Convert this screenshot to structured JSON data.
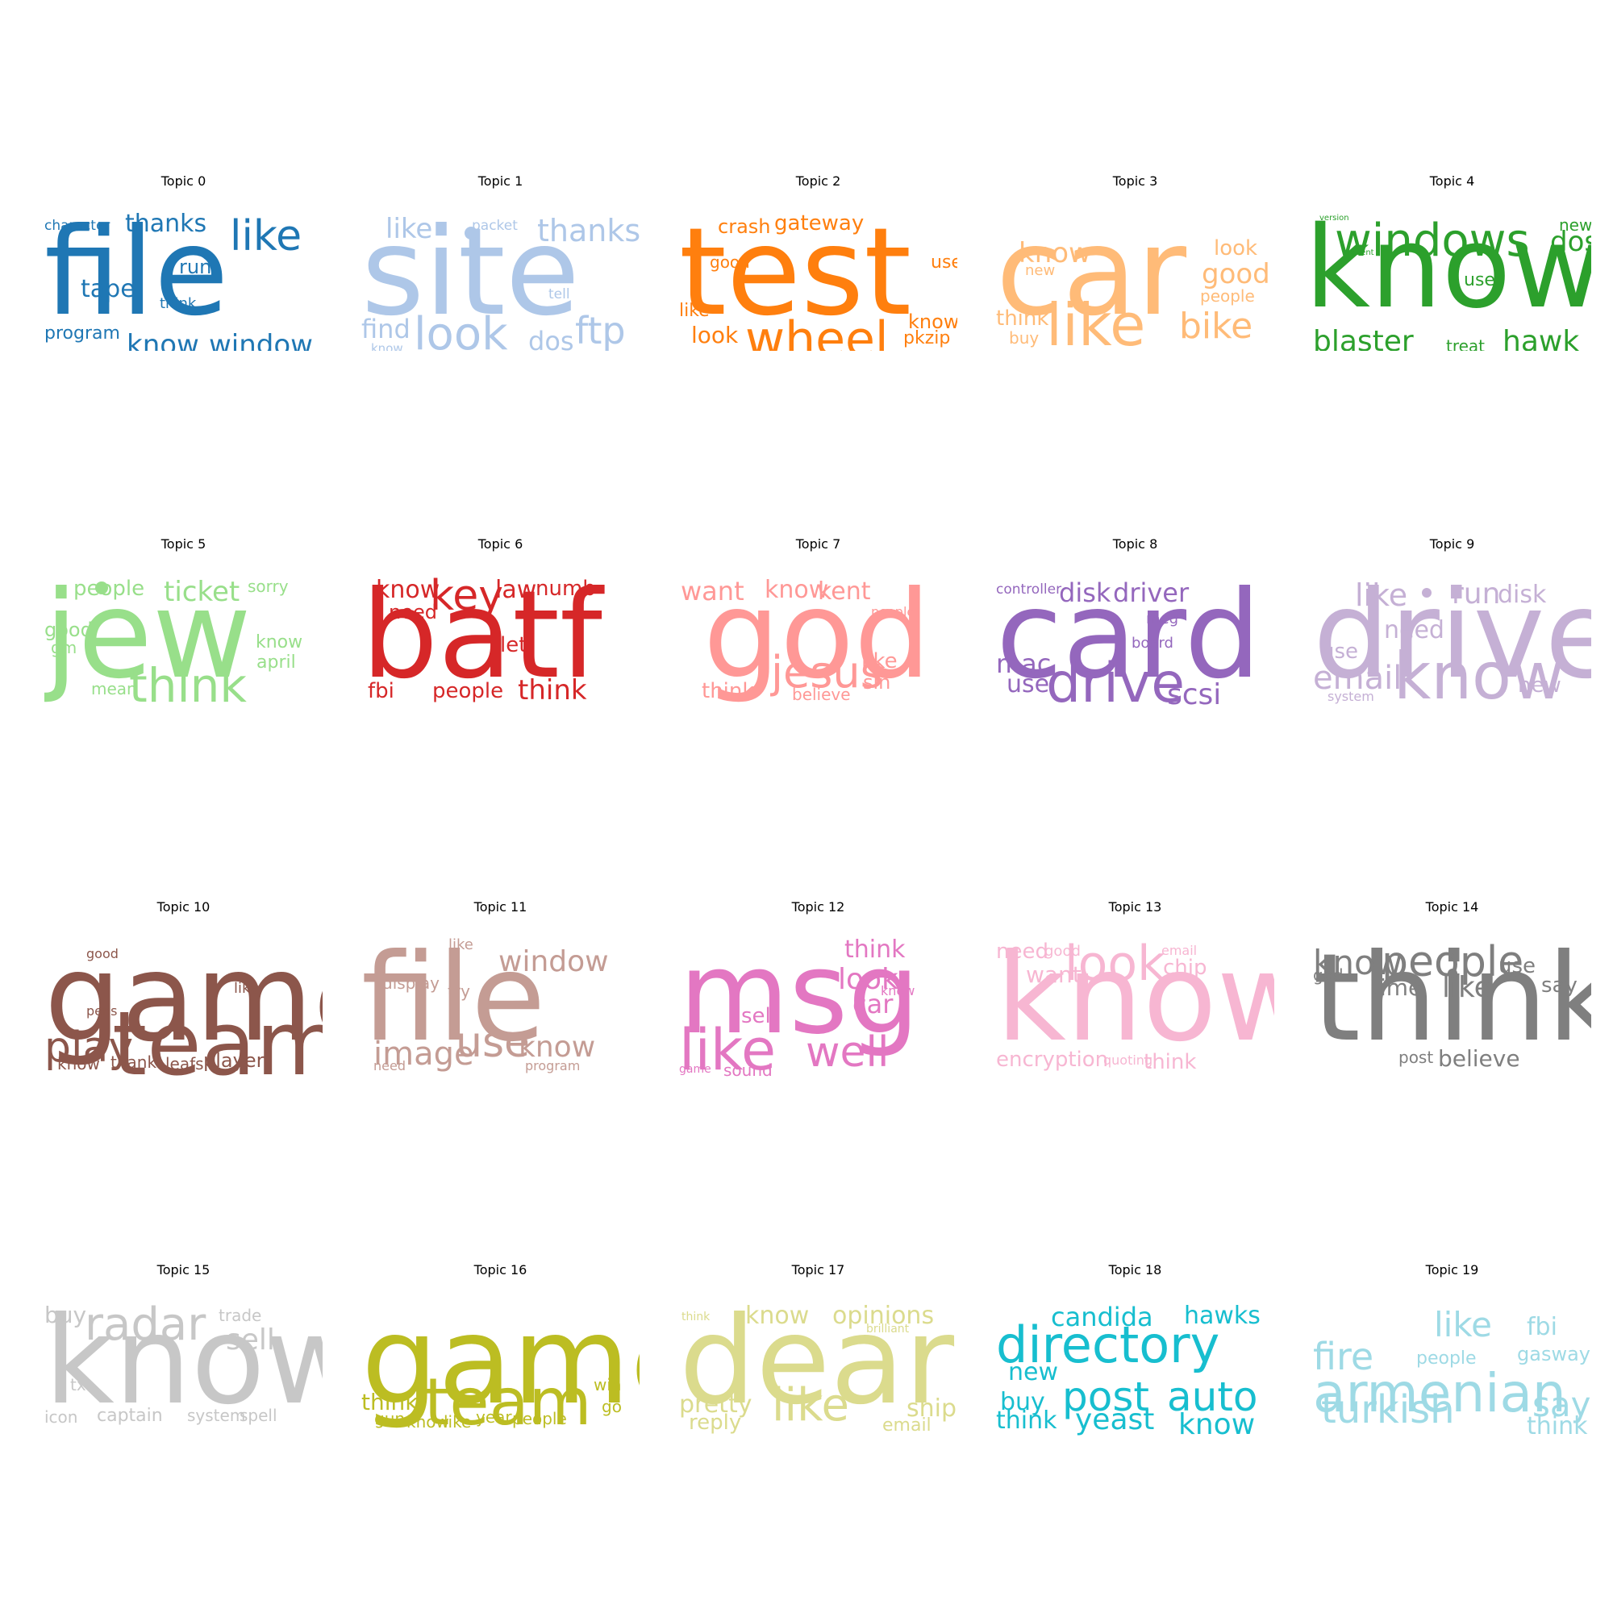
{
  "chart_data": {
    "type": "wordcloud",
    "topics": [
      {
        "title": "Topic 0",
        "color": "#1f77b4",
        "words": [
          "file",
          "like",
          "thanks",
          "character",
          "run",
          "tape",
          "think",
          "program",
          "know",
          "window"
        ],
        "weights": [
          10,
          4,
          3,
          1.5,
          2,
          2.5,
          1.5,
          2,
          3,
          3
        ]
      },
      {
        "title": "Topic 1",
        "color": "#aec7e8",
        "words": [
          "site",
          "like",
          "packet",
          "thanks",
          "tell",
          "look",
          "find",
          "dos",
          "ftp",
          "know"
        ],
        "weights": [
          10,
          3,
          1.5,
          3.5,
          1.5,
          5,
          3,
          3,
          4,
          1.5
        ]
      },
      {
        "title": "Topic 2",
        "color": "#ff7f0e",
        "words": [
          "test",
          "crash",
          "gateway",
          "good",
          "use",
          "like",
          "look",
          "wheel",
          "know",
          "pkzip"
        ],
        "weights": [
          10,
          2.5,
          2.5,
          2,
          2,
          2,
          2.5,
          6,
          2,
          2
        ]
      },
      {
        "title": "Topic 3",
        "color": "#ffbb78",
        "words": [
          "car",
          "know",
          "new",
          "look",
          "good",
          "people",
          "think",
          "buy",
          "like",
          "bike"
        ],
        "weights": [
          10,
          3.5,
          1.5,
          2.5,
          3,
          2,
          2.5,
          2,
          6,
          4
        ]
      },
      {
        "title": "Topic 4",
        "color": "#2ca02c",
        "words": [
          "know",
          "windows",
          "dos",
          "new",
          "version",
          "patient",
          "use",
          "blaster",
          "treat",
          "hawk"
        ],
        "weights": [
          10,
          5,
          3,
          2,
          1,
          1,
          2,
          3.5,
          2,
          3.5
        ]
      },
      {
        "title": "Topic 5",
        "color": "#98df8a",
        "words": [
          "jew",
          "people",
          "ticket",
          "sorry",
          "good",
          "gm",
          "know",
          "april",
          "think",
          "mean"
        ],
        "weights": [
          10,
          2.5,
          3,
          2,
          2.5,
          2,
          2.5,
          2.5,
          5,
          2
        ]
      },
      {
        "title": "Topic 6",
        "color": "#d62728",
        "words": [
          "batf",
          "know",
          "key",
          "law",
          "numb",
          "need",
          "let",
          "fbi",
          "people",
          "think"
        ],
        "weights": [
          10,
          3,
          4,
          3,
          2.5,
          2.5,
          2.5,
          2.5,
          2.5,
          3.5
        ]
      },
      {
        "title": "Topic 7",
        "color": "#ff9896",
        "words": [
          "god",
          "want",
          "know",
          "kent",
          "people",
          "jesus",
          "like",
          "sin",
          "think",
          "believe"
        ],
        "weights": [
          10,
          3,
          3,
          3,
          1.5,
          5,
          2.5,
          2.5,
          2.5,
          2
        ]
      },
      {
        "title": "Topic 8",
        "color": "#9467bd",
        "words": [
          "card",
          "controller",
          "disk",
          "driver",
          "meg",
          "board",
          "mac",
          "use",
          "drive",
          "scsi"
        ],
        "weights": [
          10,
          1.5,
          3,
          3,
          1.5,
          1.5,
          3,
          2.5,
          6,
          3.5
        ]
      },
      {
        "title": "Topic 9",
        "color": "#c5b0d5",
        "words": [
          "drive",
          "like",
          "run",
          "disk",
          "need",
          "use",
          "email",
          "know",
          "new",
          "system"
        ],
        "weights": [
          10,
          3.5,
          3.5,
          3,
          3,
          2.5,
          4,
          7,
          2.5,
          1.5
        ]
      },
      {
        "title": "Topic 10",
        "color": "#8c564b",
        "words": [
          "game",
          "team",
          "good",
          "like",
          "pens",
          "play",
          "know",
          "thank",
          "leafs",
          "player"
        ],
        "weights": [
          10,
          8,
          1.5,
          1.5,
          1.5,
          5,
          2,
          2,
          2,
          2.5
        ]
      },
      {
        "title": "Topic 11",
        "color": "#c49c94",
        "words": [
          "file",
          "window",
          "like",
          "display",
          "try",
          "image",
          "use",
          "know",
          "need",
          "program"
        ],
        "weights": [
          10,
          3.5,
          1.5,
          2,
          2,
          4,
          5,
          3,
          1.5,
          1.5
        ]
      },
      {
        "title": "Topic 12",
        "color": "#e377c2",
        "words": [
          "msg",
          "think",
          "look",
          "know",
          "car",
          "sell",
          "like",
          "well",
          "game",
          "sound"
        ],
        "weights": [
          10,
          3,
          4,
          1.5,
          3,
          2.5,
          7,
          5,
          1.5,
          2
        ]
      },
      {
        "title": "Topic 13",
        "color": "#f7b6d2",
        "words": [
          "know",
          "need",
          "good",
          "want",
          "look",
          "email",
          "chip",
          "encryption",
          "quoting",
          "think"
        ],
        "weights": [
          10,
          3,
          1.5,
          3,
          6,
          1.5,
          3,
          2.5,
          1.5,
          2.5
        ]
      },
      {
        "title": "Topic 14",
        "color": "#7f7f7f",
        "words": [
          "think",
          "know",
          "people",
          "use",
          "god",
          "time",
          "like",
          "say",
          "post",
          "believe"
        ],
        "weights": [
          10,
          4,
          5,
          3,
          2.5,
          3,
          3.5,
          2.5,
          2,
          2.5
        ]
      },
      {
        "title": "Topic 15",
        "color": "#c7c7c7",
        "words": [
          "know",
          "radar",
          "buy",
          "trade",
          "sell",
          "tx",
          "icon",
          "captain",
          "system",
          "spell"
        ],
        "weights": [
          10,
          6,
          3,
          2,
          3.5,
          2,
          2,
          2,
          2,
          2
        ]
      },
      {
        "title": "Topic 16",
        "color": "#bcbd22",
        "words": [
          "game",
          "team",
          "think",
          "gun",
          "know",
          "like",
          "year",
          "people",
          "win",
          "go"
        ],
        "weights": [
          10,
          8,
          3,
          2,
          2,
          2,
          2,
          2,
          2,
          2
        ]
      },
      {
        "title": "Topic 17",
        "color": "#dbdb8d",
        "words": [
          "dear",
          "know",
          "opinions",
          "think",
          "brilliant",
          "pretty",
          "reply",
          "like",
          "ship",
          "email"
        ],
        "weights": [
          10,
          3,
          3,
          1,
          1,
          3,
          2.5,
          5,
          3,
          2
        ]
      },
      {
        "title": "Topic 18",
        "color": "#17becf",
        "words": [
          "directory",
          "candida",
          "hawks",
          "new",
          "buy",
          "post",
          "auto",
          "think",
          "yeast",
          "know"
        ],
        "weights": [
          7,
          3,
          3,
          3,
          3,
          5,
          5,
          3,
          3.5,
          3.5
        ]
      },
      {
        "title": "Topic 19",
        "color": "#9edae5",
        "words": [
          "armenian",
          "like",
          "fbi",
          "fire",
          "people",
          "gasway",
          "turkish",
          "say",
          "think"
        ],
        "weights": [
          7,
          4,
          3,
          4,
          2,
          2,
          5,
          4,
          3
        ]
      }
    ]
  }
}
